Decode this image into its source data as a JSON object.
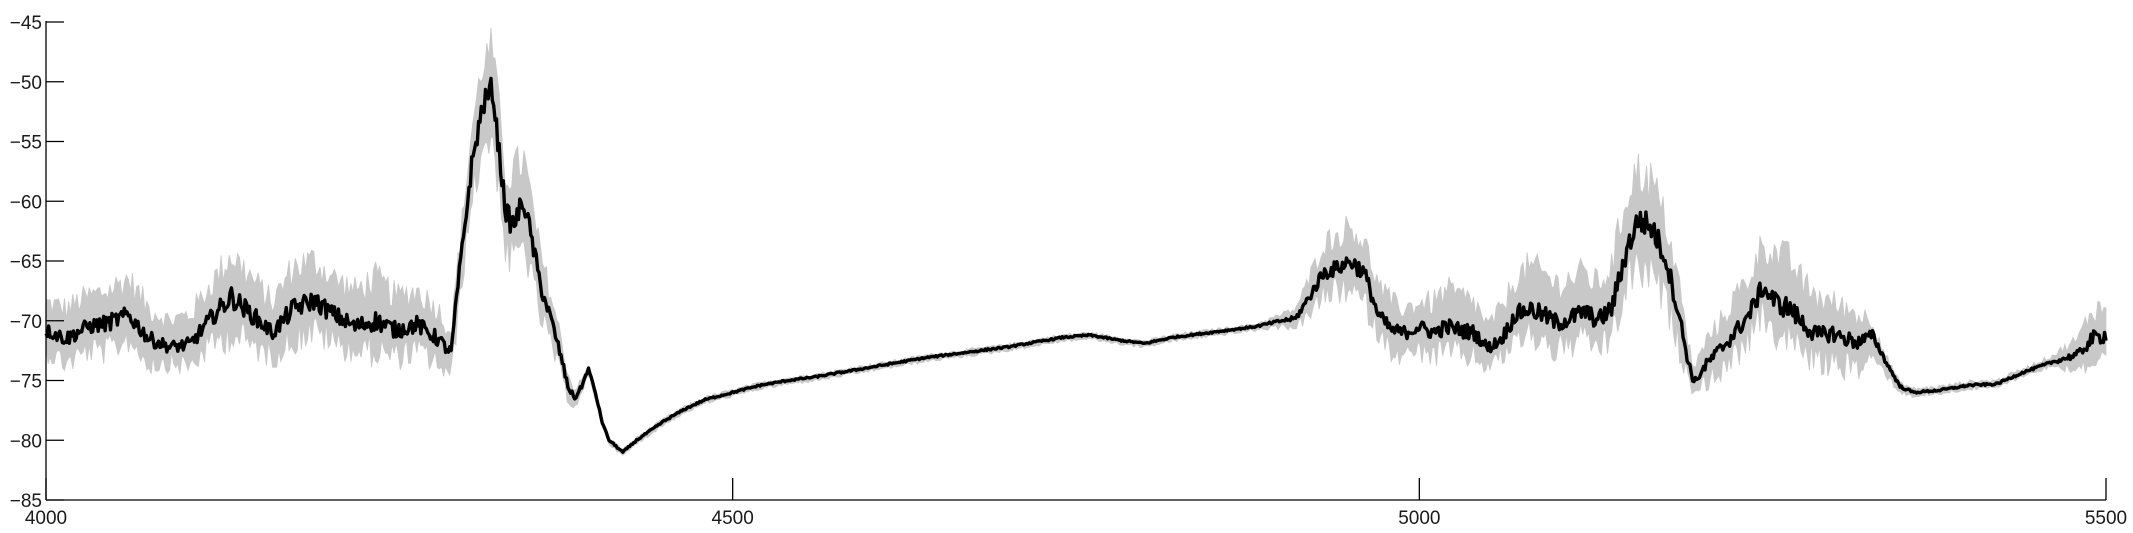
{
  "chart_data": {
    "type": "line",
    "title": "",
    "xlabel": "",
    "ylabel": "",
    "xlim": [
      4000,
      5500
    ],
    "ylim": [
      -85,
      -45
    ],
    "xticks": [
      4000,
      4500,
      5000,
      5500
    ],
    "yticks": [
      -45,
      -50,
      -55,
      -60,
      -65,
      -70,
      -75,
      -80,
      -85
    ],
    "grid": false,
    "legend": "none",
    "colors": {
      "mean": "#000000",
      "spread": "#c8c8c8"
    },
    "series": [
      {
        "role": "mean",
        "x": [
          4000,
          4015,
          4030,
          4045,
          4060,
          4075,
          4090,
          4105,
          4120,
          4135,
          4150,
          4165,
          4180,
          4195,
          4210,
          4225,
          4240,
          4255,
          4270,
          4285,
          4295,
          4300,
          4305,
          4310,
          4318,
          4325,
          4330,
          4335,
          4340,
          4348,
          4355,
          4360,
          4368,
          4375,
          4380,
          4385,
          4390,
          4395,
          4400,
          4405,
          4410,
          4415,
          4420,
          4425,
          4430,
          4440,
          4450,
          4465,
          4480,
          4500,
          4520,
          4540,
          4560,
          4580,
          4600,
          4620,
          4640,
          4660,
          4680,
          4700,
          4720,
          4740,
          4760,
          4780,
          4800,
          4820,
          4840,
          4860,
          4880,
          4900,
          4910,
          4920,
          4930,
          4940,
          4950,
          4960,
          4970,
          4980,
          4990,
          5000,
          5010,
          5020,
          5030,
          5040,
          5050,
          5060,
          5070,
          5080,
          5090,
          5100,
          5110,
          5120,
          5130,
          5140,
          5150,
          5155,
          5160,
          5170,
          5180,
          5190,
          5195,
          5200,
          5210,
          5220,
          5230,
          5240,
          5250,
          5260,
          5270,
          5280,
          5290,
          5300,
          5310,
          5320,
          5330,
          5340,
          5350,
          5360,
          5380,
          5400,
          5420,
          5440,
          5460,
          5480,
          5490,
          5500
        ],
        "y": [
          -70.8,
          -71.5,
          -70.5,
          -70.2,
          -69.5,
          -71.5,
          -72.2,
          -72.0,
          -69.8,
          -68.0,
          -69.5,
          -71.0,
          -69.0,
          -68.3,
          -69.5,
          -70.5,
          -70.0,
          -70.8,
          -70.3,
          -71.5,
          -72.7,
          -67.0,
          -62.0,
          -57.0,
          -52.0,
          -50.5,
          -56.0,
          -61.0,
          -62.0,
          -60.0,
          -64.0,
          -67.0,
          -70.0,
          -73.0,
          -75.5,
          -76.5,
          -75.5,
          -74.0,
          -76.0,
          -78.5,
          -80.0,
          -80.5,
          -81.0,
          -80.5,
          -80.0,
          -79.2,
          -78.4,
          -77.4,
          -76.6,
          -76.0,
          -75.4,
          -75.0,
          -74.7,
          -74.3,
          -73.9,
          -73.5,
          -73.1,
          -72.8,
          -72.5,
          -72.2,
          -71.8,
          -71.4,
          -71.2,
          -71.6,
          -71.9,
          -71.4,
          -71.1,
          -70.8,
          -70.5,
          -70.0,
          -69.8,
          -68.0,
          -66.0,
          -65.6,
          -65.0,
          -66.0,
          -69.5,
          -70.8,
          -71.0,
          -70.5,
          -71.0,
          -70.5,
          -70.8,
          -71.0,
          -72.3,
          -71.5,
          -69.5,
          -69.0,
          -69.5,
          -70.2,
          -69.8,
          -69.2,
          -70.0,
          -69.0,
          -64.5,
          -62.8,
          -61.5,
          -62.3,
          -65.0,
          -70.0,
          -73.0,
          -75.2,
          -73.5,
          -72.3,
          -71.0,
          -69.5,
          -67.2,
          -68.5,
          -69.0,
          -70.3,
          -71.3,
          -71.0,
          -71.5,
          -71.8,
          -71.2,
          -73.5,
          -75.5,
          -76.0,
          -75.8,
          -75.4,
          -75.3,
          -74.3,
          -73.5,
          -72.8,
          -71.5,
          -71.2
        ]
      },
      {
        "role": "spread",
        "x": [
          4000,
          4015,
          4030,
          4045,
          4060,
          4075,
          4090,
          4105,
          4120,
          4135,
          4150,
          4165,
          4180,
          4195,
          4210,
          4225,
          4240,
          4255,
          4270,
          4285,
          4295,
          4300,
          4305,
          4310,
          4318,
          4325,
          4330,
          4335,
          4340,
          4348,
          4355,
          4360,
          4368,
          4375,
          4380,
          4385,
          4390,
          4395,
          4400,
          4405,
          4410,
          4415,
          4420,
          4425,
          4430,
          4440,
          4450,
          4465,
          4480,
          4500,
          4520,
          4540,
          4560,
          4580,
          4600,
          4620,
          4640,
          4660,
          4680,
          4700,
          4720,
          4740,
          4760,
          4780,
          4800,
          4820,
          4840,
          4860,
          4880,
          4900,
          4910,
          4920,
          4930,
          4940,
          4950,
          4960,
          4970,
          4980,
          4990,
          5000,
          5010,
          5020,
          5030,
          5040,
          5050,
          5060,
          5070,
          5080,
          5090,
          5100,
          5110,
          5120,
          5130,
          5140,
          5150,
          5155,
          5160,
          5170,
          5180,
          5190,
          5195,
          5200,
          5210,
          5220,
          5230,
          5240,
          5250,
          5260,
          5270,
          5280,
          5290,
          5300,
          5310,
          5320,
          5330,
          5340,
          5350,
          5360,
          5380,
          5400,
          5420,
          5440,
          5460,
          5480,
          5490,
          5500
        ],
        "upper": [
          -68.5,
          -69.0,
          -68.0,
          -67.5,
          -66.5,
          -69.0,
          -70.0,
          -69.5,
          -67.0,
          -64.5,
          -66.5,
          -68.5,
          -65.5,
          -65.0,
          -66.5,
          -67.5,
          -66.5,
          -68.0,
          -67.5,
          -69.0,
          -71.0,
          -65.0,
          -59.5,
          -54.0,
          -48.5,
          -47.0,
          -52.5,
          -58.0,
          -57.5,
          -56.5,
          -61.0,
          -64.5,
          -68.0,
          -71.5,
          -74.5,
          -75.8,
          -75.0,
          -73.7,
          -75.7,
          -78.3,
          -79.8,
          -80.3,
          -80.8,
          -80.3,
          -79.8,
          -79.0,
          -78.2,
          -77.2,
          -76.4,
          -75.8,
          -75.2,
          -74.8,
          -74.5,
          -74.1,
          -73.7,
          -73.3,
          -72.9,
          -72.6,
          -72.3,
          -72.0,
          -71.6,
          -71.2,
          -71.0,
          -71.4,
          -71.7,
          -71.2,
          -70.9,
          -70.6,
          -70.3,
          -69.5,
          -69.0,
          -66.5,
          -63.5,
          -63.0,
          -62.0,
          -63.5,
          -67.0,
          -68.5,
          -69.0,
          -68.5,
          -68.5,
          -67.5,
          -68.0,
          -68.5,
          -70.5,
          -69.0,
          -66.5,
          -65.5,
          -66.0,
          -67.0,
          -66.5,
          -66.0,
          -67.0,
          -65.5,
          -60.0,
          -58.0,
          -57.5,
          -58.5,
          -62.0,
          -67.5,
          -71.5,
          -74.0,
          -71.5,
          -70.0,
          -68.0,
          -66.5,
          -63.5,
          -64.5,
          -65.0,
          -67.0,
          -68.0,
          -68.5,
          -69.0,
          -69.5,
          -70.0,
          -73.0,
          -75.2,
          -75.7,
          -75.5,
          -75.1,
          -75.0,
          -74.0,
          -73.0,
          -71.5,
          -69.0,
          -69.0
        ],
        "lower": [
          -72.5,
          -73.5,
          -72.5,
          -72.5,
          -71.5,
          -73.5,
          -73.5,
          -73.8,
          -72.0,
          -71.0,
          -72.0,
          -73.0,
          -71.5,
          -70.8,
          -71.8,
          -72.5,
          -72.5,
          -73.0,
          -72.5,
          -73.5,
          -74.8,
          -69.5,
          -64.5,
          -60.0,
          -55.5,
          -54.5,
          -59.0,
          -64.5,
          -65.0,
          -63.5,
          -67.0,
          -69.5,
          -72.0,
          -74.5,
          -76.5,
          -77.2,
          -76.2,
          -74.5,
          -76.5,
          -78.8,
          -80.3,
          -80.8,
          -81.3,
          -80.8,
          -80.3,
          -79.5,
          -78.7,
          -77.7,
          -76.9,
          -76.3,
          -75.7,
          -75.3,
          -75.0,
          -74.6,
          -74.2,
          -73.8,
          -73.4,
          -73.1,
          -72.8,
          -72.5,
          -72.1,
          -71.7,
          -71.5,
          -71.9,
          -72.2,
          -71.7,
          -71.4,
          -71.1,
          -70.8,
          -70.5,
          -70.5,
          -69.5,
          -68.0,
          -67.5,
          -67.5,
          -68.5,
          -71.0,
          -72.5,
          -73.0,
          -72.5,
          -73.0,
          -72.5,
          -72.8,
          -73.0,
          -73.8,
          -73.0,
          -71.5,
          -71.2,
          -71.5,
          -72.5,
          -72.0,
          -71.5,
          -72.2,
          -71.5,
          -67.5,
          -66.0,
          -65.5,
          -66.5,
          -68.5,
          -72.5,
          -74.5,
          -76.0,
          -75.0,
          -74.2,
          -73.0,
          -71.5,
          -69.5,
          -71.0,
          -71.5,
          -72.5,
          -73.5,
          -73.5,
          -73.8,
          -74.0,
          -73.0,
          -74.5,
          -76.0,
          -76.3,
          -76.1,
          -75.7,
          -75.6,
          -74.6,
          -73.8,
          -74.0,
          -73.5,
          -73.5
        ]
      }
    ]
  }
}
